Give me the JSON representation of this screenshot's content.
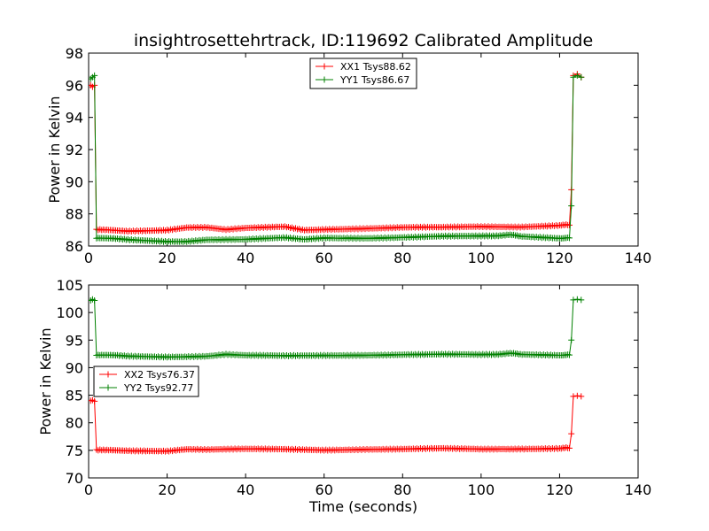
{
  "chart_data": [
    {
      "type": "line",
      "title": "insightrosettehrtrack, ID:119692 Calibrated Amplitude",
      "xlabel": "",
      "ylabel": "Power in Kelvin",
      "xlim": [
        0,
        140
      ],
      "ylim": [
        86,
        98
      ],
      "xticks": [
        "0",
        "20",
        "40",
        "60",
        "80",
        "100",
        "120",
        "140"
      ],
      "yticks": [
        "86",
        "88",
        "90",
        "92",
        "94",
        "96",
        "98"
      ],
      "legend_position": "top-center",
      "grid": false,
      "series": [
        {
          "name": "XX1 Tsys88.62",
          "color": "#ff0000",
          "marker": "plus",
          "points": [
            [
              0.5,
              96.0
            ],
            [
              1.0,
              95.9
            ],
            [
              1.5,
              96.0
            ],
            [
              2.0,
              87.0
            ],
            [
              10,
              86.95
            ],
            [
              20,
              87.0
            ],
            [
              25,
              87.15
            ],
            [
              30,
              87.15
            ],
            [
              35,
              87.0
            ],
            [
              40,
              87.1
            ],
            [
              50,
              87.2
            ],
            [
              55,
              87.0
            ],
            [
              60,
              87.05
            ],
            [
              70,
              87.1
            ],
            [
              80,
              87.15
            ],
            [
              90,
              87.15
            ],
            [
              100,
              87.2
            ],
            [
              110,
              87.2
            ],
            [
              120,
              87.3
            ],
            [
              122.5,
              87.3
            ],
            [
              123.0,
              89.5
            ],
            [
              123.5,
              96.6
            ],
            [
              124.5,
              96.7
            ],
            [
              125.5,
              96.5
            ]
          ]
        },
        {
          "name": "YY1 Tsys86.67",
          "color": "#008000",
          "marker": "plus",
          "points": [
            [
              0.5,
              96.4
            ],
            [
              1.0,
              96.5
            ],
            [
              1.5,
              96.6
            ],
            [
              2.0,
              86.5
            ],
            [
              10,
              86.4
            ],
            [
              20,
              86.3
            ],
            [
              25,
              86.3
            ],
            [
              30,
              86.4
            ],
            [
              40,
              86.4
            ],
            [
              50,
              86.5
            ],
            [
              55,
              86.4
            ],
            [
              60,
              86.5
            ],
            [
              70,
              86.5
            ],
            [
              80,
              86.55
            ],
            [
              90,
              86.6
            ],
            [
              100,
              86.6
            ],
            [
              107,
              86.7
            ],
            [
              110,
              86.6
            ],
            [
              120,
              86.5
            ],
            [
              122.5,
              86.5
            ],
            [
              123.0,
              88.5
            ],
            [
              123.5,
              96.5
            ],
            [
              124.5,
              96.6
            ],
            [
              125.5,
              96.5
            ]
          ]
        }
      ]
    },
    {
      "type": "line",
      "title": "",
      "xlabel": "Time (seconds)",
      "ylabel": "Power in Kelvin",
      "xlim": [
        0,
        140
      ],
      "ylim": [
        70,
        105
      ],
      "xticks": [
        "0",
        "20",
        "40",
        "60",
        "80",
        "100",
        "120",
        "140"
      ],
      "yticks": [
        "70",
        "75",
        "80",
        "85",
        "90",
        "95",
        "100",
        "105"
      ],
      "legend_position": "center-left",
      "grid": false,
      "series": [
        {
          "name": "XX2 Tsys76.37",
          "color": "#ff0000",
          "marker": "plus",
          "points": [
            [
              0.5,
              84.0
            ],
            [
              1.0,
              84.1
            ],
            [
              1.5,
              83.9
            ],
            [
              2.0,
              75.0
            ],
            [
              10,
              75.0
            ],
            [
              20,
              74.9
            ],
            [
              25,
              75.2
            ],
            [
              30,
              75.1
            ],
            [
              40,
              75.2
            ],
            [
              50,
              75.2
            ],
            [
              60,
              75.1
            ],
            [
              70,
              75.2
            ],
            [
              80,
              75.2
            ],
            [
              90,
              75.3
            ],
            [
              100,
              75.2
            ],
            [
              110,
              75.3
            ],
            [
              120,
              75.4
            ],
            [
              122.5,
              75.4
            ],
            [
              123.0,
              78.0
            ],
            [
              123.5,
              84.8
            ],
            [
              124.5,
              84.9
            ],
            [
              125.5,
              84.8
            ]
          ]
        },
        {
          "name": "YY2 Tsys92.77",
          "color": "#008000",
          "marker": "plus",
          "points": [
            [
              0.5,
              102.2
            ],
            [
              1.0,
              102.4
            ],
            [
              1.5,
              102.2
            ],
            [
              2.0,
              92.3
            ],
            [
              10,
              92.1
            ],
            [
              20,
              92.0
            ],
            [
              30,
              92.1
            ],
            [
              35,
              92.4
            ],
            [
              40,
              92.2
            ],
            [
              50,
              92.1
            ],
            [
              60,
              92.2
            ],
            [
              70,
              92.3
            ],
            [
              80,
              92.4
            ],
            [
              90,
              92.4
            ],
            [
              100,
              92.3
            ],
            [
              107,
              92.6
            ],
            [
              110,
              92.4
            ],
            [
              120,
              92.3
            ],
            [
              122.5,
              92.3
            ],
            [
              123.0,
              95.0
            ],
            [
              123.5,
              102.3
            ],
            [
              124.5,
              102.4
            ],
            [
              125.5,
              102.3
            ]
          ]
        }
      ]
    }
  ]
}
